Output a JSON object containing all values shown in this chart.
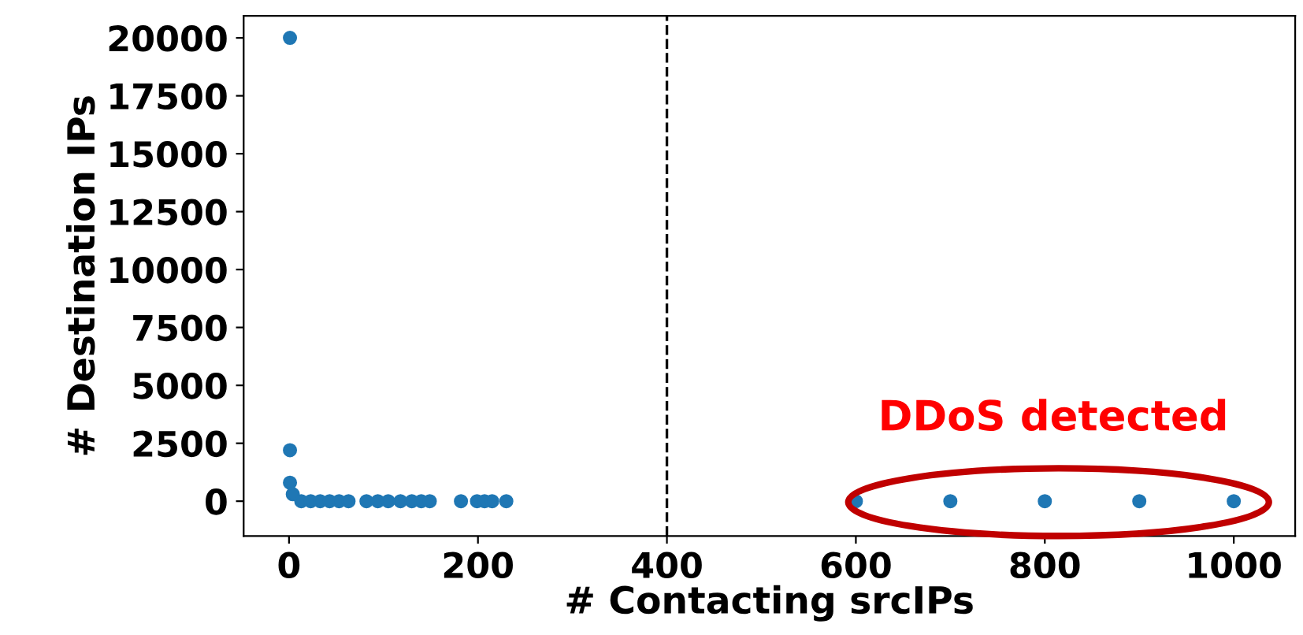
{
  "chart_data": {
    "type": "scatter",
    "xlabel": "# Contacting srcIPs",
    "ylabel": "# Destination IPs",
    "series": [
      {
        "color": "#1f77b4",
        "x": [
          1,
          1,
          1,
          4,
          13,
          23,
          33,
          43,
          53,
          63,
          82,
          94,
          105,
          118,
          130,
          140,
          149,
          182,
          199,
          207,
          215,
          230,
          600,
          700,
          800,
          900,
          1000
        ],
        "values": [
          20000,
          2200,
          800,
          300,
          0,
          0,
          0,
          0,
          0,
          0,
          0,
          0,
          0,
          0,
          0,
          0,
          0,
          0,
          0,
          0,
          0,
          0,
          0,
          0,
          0,
          0,
          0
        ]
      }
    ],
    "xlim": [
      -48,
      1065
    ],
    "ylim": [
      -1500,
      20950
    ],
    "xticks": [
      0,
      200,
      400,
      600,
      800,
      1000
    ],
    "yticks": [
      0,
      2500,
      5000,
      7500,
      10000,
      12500,
      15000,
      17500,
      20000
    ],
    "ref_lines": [
      {
        "axis": "x",
        "value": 400,
        "color": "#000000",
        "line_style": "dashed"
      }
    ],
    "annotations": [
      "DDoS detected"
    ],
    "marker": "circle",
    "grid": false,
    "legend": false
  }
}
